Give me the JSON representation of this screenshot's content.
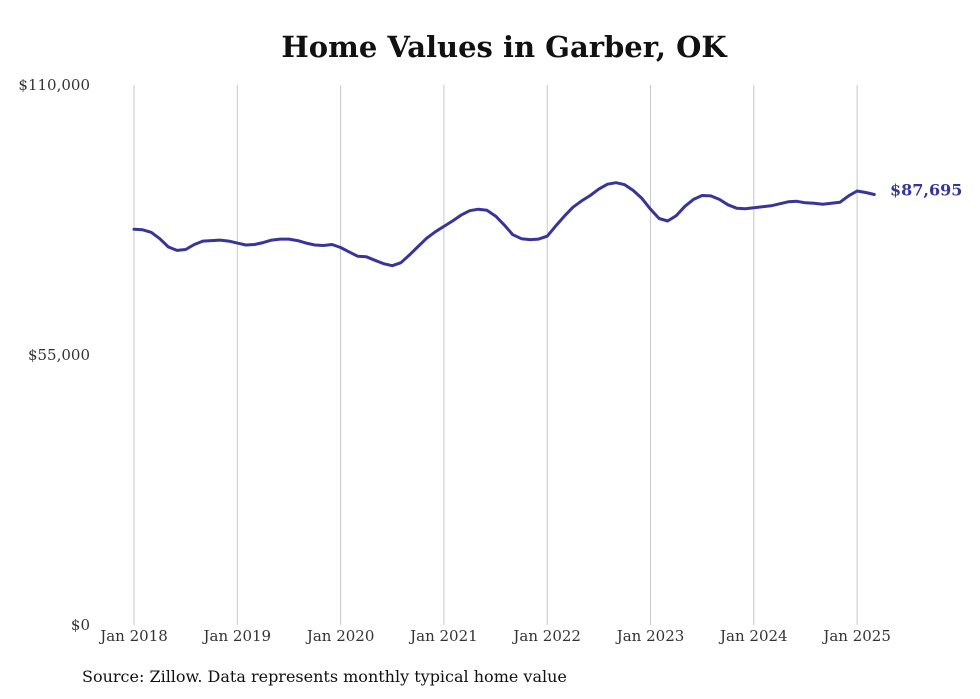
{
  "chart_data": {
    "type": "line",
    "title": "Home Values in Garber, OK",
    "source": "Source: Zillow. Data represents monthly typical home value",
    "ylim": [
      0,
      110000
    ],
    "y_ticks": [
      "$0",
      "$55,000",
      "$110,000"
    ],
    "y_tick_values": [
      0,
      55000,
      110000
    ],
    "x_ticks": [
      "Jan 2018",
      "Jan 2019",
      "Jan 2020",
      "Jan 2021",
      "Jan 2022",
      "Jan 2023",
      "Jan 2024",
      "Jan 2025"
    ],
    "grid": "vertical",
    "colors": {
      "line": "#38359a",
      "grid": "#c8c8c8",
      "end_label": "#38359a"
    },
    "end_label": "$87,695",
    "series": [
      {
        "x": [
          "2018-01",
          "2018-02",
          "2018-03",
          "2018-04",
          "2018-05",
          "2018-06",
          "2018-07",
          "2018-08",
          "2018-09",
          "2018-10",
          "2018-11",
          "2018-12",
          "2019-01",
          "2019-02",
          "2019-03",
          "2019-04",
          "2019-05",
          "2019-06",
          "2019-07",
          "2019-08",
          "2019-09",
          "2019-10",
          "2019-11",
          "2019-12",
          "2020-01",
          "2020-02",
          "2020-03",
          "2020-04",
          "2020-05",
          "2020-06",
          "2020-07",
          "2020-08",
          "2020-09",
          "2020-10",
          "2020-11",
          "2020-12",
          "2021-01",
          "2021-02",
          "2021-03",
          "2021-04",
          "2021-05",
          "2021-06",
          "2021-07",
          "2021-08",
          "2021-09",
          "2021-10",
          "2021-11",
          "2021-12",
          "2022-01",
          "2022-02",
          "2022-03",
          "2022-04",
          "2022-05",
          "2022-06",
          "2022-07",
          "2022-08",
          "2022-09",
          "2022-10",
          "2022-11",
          "2022-12",
          "2023-01",
          "2023-02",
          "2023-03",
          "2023-04",
          "2023-05",
          "2023-06",
          "2023-07",
          "2023-08",
          "2023-09",
          "2023-10",
          "2023-11",
          "2023-12",
          "2024-01",
          "2024-02",
          "2024-03",
          "2024-04",
          "2024-05",
          "2024-06",
          "2024-07",
          "2024-08",
          "2024-09",
          "2024-10",
          "2024-11",
          "2024-12",
          "2025-01",
          "2025-02",
          "2025-03"
        ],
        "values": [
          80600,
          80500,
          80000,
          78700,
          77000,
          76300,
          76500,
          77500,
          78200,
          78300,
          78400,
          78200,
          77800,
          77400,
          77500,
          77900,
          78400,
          78600,
          78600,
          78300,
          77800,
          77400,
          77300,
          77500,
          76900,
          76000,
          75100,
          75000,
          74300,
          73600,
          73200,
          73800,
          75400,
          77100,
          78800,
          80100,
          81200,
          82300,
          83500,
          84400,
          84700,
          84500,
          83300,
          81500,
          79500,
          78700,
          78500,
          78600,
          79200,
          81300,
          83300,
          85100,
          86400,
          87500,
          88800,
          89800,
          90100,
          89700,
          88500,
          86900,
          84700,
          82800,
          82300,
          83400,
          85300,
          86700,
          87500,
          87400,
          86700,
          85600,
          84900,
          84800,
          85000,
          85200,
          85400,
          85800,
          86200,
          86300,
          86000,
          85900,
          85700,
          85900,
          86100,
          87400,
          88400,
          88100,
          87700
        ]
      }
    ]
  }
}
